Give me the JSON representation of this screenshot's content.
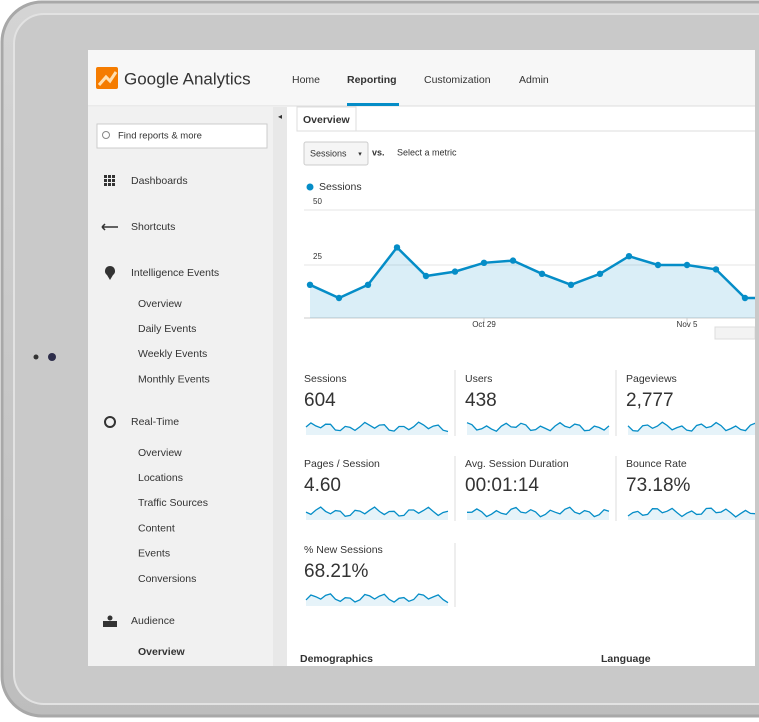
{
  "header": {
    "logo": "Google Analytics",
    "nav": [
      "Home",
      "Reporting",
      "Customization",
      "Admin"
    ]
  },
  "sidebar": {
    "search": "Find reports & more",
    "items": [
      {
        "label": "Dashboards",
        "children": []
      },
      {
        "label": "Shortcuts",
        "children": []
      },
      {
        "label": "Intelligence Events",
        "children": [
          "Overview",
          "Daily Events",
          "Weekly Events",
          "Monthly Events"
        ]
      },
      {
        "label": "Real-Time",
        "children": [
          "Overview",
          "Locations",
          "Traffic Sources",
          "Content",
          "Events",
          "Conversions"
        ]
      },
      {
        "label": "Audience",
        "children": [
          "Overview"
        ]
      }
    ]
  },
  "tab": "Overview",
  "controls": {
    "metric": "Sessions",
    "vs": "vs.",
    "select": "Select a metric"
  },
  "chart_data": {
    "type": "line",
    "categories": [
      null,
      null,
      null,
      null,
      null,
      null,
      "Oct 29",
      null,
      null,
      null,
      null,
      null,
      null,
      "Nov 5",
      null,
      null,
      null
    ],
    "series": [
      {
        "name": "Sessions",
        "color": "#058dc7",
        "values": [
          16,
          10,
          16,
          33,
          20,
          22,
          26,
          27,
          21,
          16,
          21,
          29,
          25,
          25,
          23,
          10,
          10
        ]
      }
    ],
    "ylim": [
      0,
      50
    ],
    "yticks": [
      25,
      50
    ],
    "grid": true
  },
  "metrics": [
    {
      "label": "Sessions",
      "value": "604"
    },
    {
      "label": "Users",
      "value": "438"
    },
    {
      "label": "Pageviews",
      "value": "2,777"
    },
    {
      "label": "Pages / Session",
      "value": "4.60"
    },
    {
      "label": "Avg. Session Duration",
      "value": "00:01:14"
    },
    {
      "label": "Bounce Rate",
      "value": "73.18%"
    },
    {
      "label": "% New Sessions",
      "value": "68.21%"
    }
  ],
  "sections": [
    "Demographics",
    "Language"
  ]
}
